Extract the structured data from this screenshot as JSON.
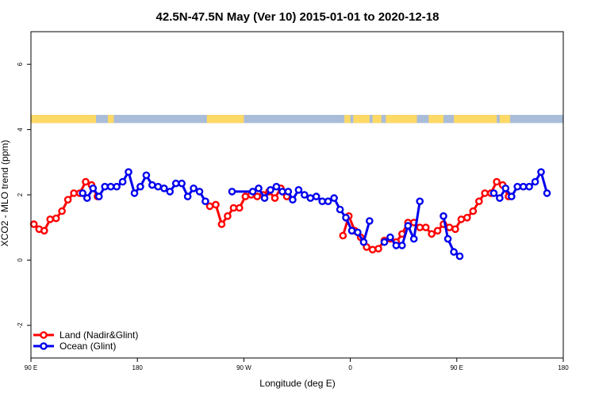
{
  "chart_data": {
    "type": "line",
    "title": "42.5N-47.5N May (Ver 10)   2015-01-01 to 2020-12-18",
    "xlabel": "Longitude (deg E)",
    "ylabel": "XCO2 - MLO trend (ppm)",
    "xlim": [
      90,
      450
    ],
    "ylim": [
      -3,
      7
    ],
    "x_ticks": [
      {
        "value": 90,
        "label": "90 E"
      },
      {
        "value": 162,
        "label": "180"
      },
      {
        "value": 234,
        "label": "90 W"
      },
      {
        "value": 306,
        "label": "0"
      },
      {
        "value": 378,
        "label": "90 E"
      },
      {
        "value": 450,
        "label": "180"
      }
    ],
    "y_ticks": [
      {
        "value": -2,
        "label": "-2"
      },
      {
        "value": 0,
        "label": "0"
      },
      {
        "value": 2,
        "label": "2"
      },
      {
        "value": 4,
        "label": "4"
      },
      {
        "value": 6,
        "label": "6"
      }
    ],
    "legend_position": "bottom-left",
    "land_ocean_band": {
      "y_range": [
        4.2,
        4.45
      ],
      "land_color": "#ffd966",
      "ocean_color": "#a9bcd8",
      "land_segments": [
        [
          90,
          134
        ],
        [
          142,
          146
        ],
        [
          209,
          234
        ],
        [
          302,
          306
        ],
        [
          308,
          319
        ],
        [
          321,
          327
        ],
        [
          330,
          351
        ],
        [
          359,
          369
        ],
        [
          376,
          405
        ],
        [
          407,
          414
        ]
      ]
    },
    "series": [
      {
        "name": "Land (Nadir&Glint)",
        "color": "#ff0000",
        "segments": [
          [
            [
              92,
              1.1
            ],
            [
              95.5,
              0.95
            ],
            [
              99,
              0.9
            ],
            [
              103,
              1.25
            ],
            [
              107,
              1.28
            ],
            [
              111,
              1.5
            ],
            [
              115,
              1.85
            ],
            [
              119,
              2.05
            ],
            [
              123,
              2.05
            ],
            [
              127,
              2.4
            ],
            [
              131,
              2.3
            ],
            [
              135,
              1.95
            ]
          ],
          [
            [
              211,
              1.65
            ],
            [
              215,
              1.7
            ],
            [
              219,
              1.1
            ],
            [
              223,
              1.35
            ],
            [
              227,
              1.6
            ],
            [
              231,
              1.6
            ],
            [
              235,
              1.95
            ],
            [
              239,
              2.0
            ],
            [
              243,
              1.95
            ],
            [
              247,
              2.0
            ],
            [
              251,
              2.1
            ],
            [
              255,
              1.9
            ],
            [
              259,
              2.2
            ],
            [
              263,
              1.95
            ]
          ],
          [
            [
              301,
              0.75
            ],
            [
              305,
              1.35
            ],
            [
              309,
              0.9
            ],
            [
              313,
              0.7
            ],
            [
              317,
              0.4
            ],
            [
              321,
              0.32
            ],
            [
              325,
              0.35
            ],
            [
              329,
              0.6
            ],
            [
              333,
              0.65
            ],
            [
              337,
              0.55
            ],
            [
              341,
              0.8
            ],
            [
              345,
              1.15
            ],
            [
              349,
              1.15
            ],
            [
              353,
              1.0
            ],
            [
              357,
              1.0
            ],
            [
              361,
              0.8
            ],
            [
              365,
              0.9
            ],
            [
              369,
              1.1
            ],
            [
              373,
              1.0
            ],
            [
              377,
              0.95
            ],
            [
              381,
              1.25
            ],
            [
              385,
              1.3
            ],
            [
              389,
              1.5
            ],
            [
              393,
              1.8
            ],
            [
              397,
              2.05
            ],
            [
              401,
              2.05
            ],
            [
              405,
              2.4
            ],
            [
              409,
              2.3
            ],
            [
              413,
              1.95
            ]
          ]
        ]
      },
      {
        "name": "Ocean (Glint)",
        "color": "#0000ee",
        "segments": [
          [
            [
              125,
              2.05
            ],
            [
              128,
              1.9
            ],
            [
              132,
              2.2
            ],
            [
              136,
              1.95
            ],
            [
              140,
              2.25
            ],
            [
              144,
              2.25
            ],
            [
              148,
              2.25
            ],
            [
              152,
              2.4
            ],
            [
              156,
              2.7
            ],
            [
              160,
              2.05
            ],
            [
              164,
              2.25
            ],
            [
              168,
              2.6
            ],
            [
              172,
              2.3
            ],
            [
              176,
              2.25
            ],
            [
              180,
              2.2
            ],
            [
              184,
              2.1
            ],
            [
              188,
              2.35
            ],
            [
              192,
              2.35
            ],
            [
              196,
              1.95
            ],
            [
              200,
              2.2
            ],
            [
              204,
              2.1
            ],
            [
              208,
              1.8
            ]
          ],
          [
            [
              226,
              2.1
            ],
            [
              240,
              2.1
            ],
            [
              244,
              2.2
            ],
            [
              248,
              1.9
            ],
            [
              252,
              2.15
            ],
            [
              256,
              2.25
            ],
            [
              260,
              2.1
            ],
            [
              264,
              2.1
            ],
            [
              267,
              1.85
            ],
            [
              271,
              2.15
            ],
            [
              275,
              2.0
            ],
            [
              279,
              1.9
            ],
            [
              283,
              1.95
            ],
            [
              287,
              1.8
            ],
            [
              291,
              1.8
            ],
            [
              295,
              1.9
            ],
            [
              299,
              1.55
            ],
            [
              303,
              1.3
            ],
            [
              307,
              0.9
            ],
            [
              311,
              0.85
            ],
            [
              315,
              0.55
            ],
            [
              319,
              1.2
            ]
          ],
          [
            [
              329,
              0.55
            ],
            [
              333,
              0.7
            ],
            [
              337,
              0.45
            ],
            [
              341,
              0.45
            ],
            [
              345,
              1.05
            ],
            [
              349,
              0.65
            ],
            [
              353,
              1.8
            ]
          ],
          [
            [
              369,
              1.35
            ],
            [
              372,
              0.65
            ],
            [
              376,
              0.25
            ],
            [
              380,
              0.12
            ]
          ],
          [
            [
              403,
              2.05
            ],
            [
              407,
              1.9
            ],
            [
              411,
              2.2
            ],
            [
              415,
              1.95
            ],
            [
              419,
              2.25
            ],
            [
              423,
              2.25
            ],
            [
              427,
              2.25
            ],
            [
              431,
              2.4
            ],
            [
              435,
              2.7
            ],
            [
              439,
              2.05
            ]
          ]
        ]
      }
    ]
  }
}
